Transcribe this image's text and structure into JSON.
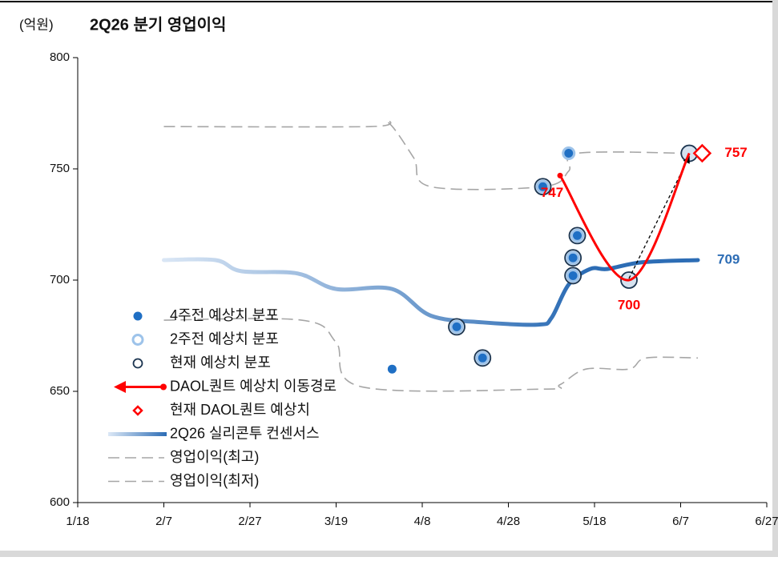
{
  "chart_data": {
    "type": "line",
    "title": "2Q26 분기 영업이익",
    "y_label": "(억원)",
    "xlim": [
      18,
      178
    ],
    "xticks": [
      {
        "value": 18,
        "label": "1/18"
      },
      {
        "value": 38,
        "label": "2/7"
      },
      {
        "value": 58,
        "label": "2/27"
      },
      {
        "value": 78,
        "label": "3/19"
      },
      {
        "value": 98,
        "label": "4/8"
      },
      {
        "value": 118,
        "label": "4/28"
      },
      {
        "value": 138,
        "label": "5/18"
      },
      {
        "value": 158,
        "label": "6/7"
      },
      {
        "value": 178,
        "label": "6/27"
      }
    ],
    "ylim": [
      600,
      800
    ],
    "yticks": [
      600,
      650,
      700,
      750,
      800
    ],
    "series": [
      {
        "name": "2Q26 실리콘투 컨센서스",
        "style": "gradient",
        "color": "#2d6db5",
        "x": [
          38,
          50,
          56,
          69,
          78,
          91,
          100,
          112,
          125,
          128,
          132,
          137,
          141,
          149,
          162
        ],
        "values": [
          709,
          709,
          704,
          703,
          696,
          696,
          684,
          681,
          680,
          683,
          698,
          705,
          705,
          708,
          709
        ],
        "value_label_index": 14
      },
      {
        "name": "영업이익(최고)",
        "style": "dashed",
        "color": "#a6a6a6",
        "x": [
          38,
          86,
          90,
          96,
          100,
          126,
          132,
          134,
          160
        ],
        "values": [
          769,
          769,
          771,
          755,
          742,
          742,
          749,
          757,
          757
        ]
      },
      {
        "name": "영업이익(최저)",
        "style": "dashed",
        "color": "#a6a6a6",
        "x": [
          38,
          70,
          78,
          84,
          126,
          130,
          136,
          146,
          150,
          162
        ],
        "values": [
          682,
          682,
          672,
          652,
          651,
          653,
          660,
          660,
          665,
          665
        ]
      },
      {
        "name": "현재 예상치 분포",
        "style": "ring",
        "color": "#1c3550",
        "x": [
          106,
          112,
          126,
          133,
          133,
          134,
          146,
          160
        ],
        "values": [
          679,
          665,
          742,
          702,
          710,
          720,
          700,
          757
        ]
      },
      {
        "name": "2주전 예상치 분포",
        "style": "lightring",
        "color": "#9dc3ea",
        "x": [
          106,
          112,
          126,
          132,
          133,
          133,
          134
        ],
        "values": [
          679,
          665,
          742,
          757,
          702,
          710,
          720
        ]
      },
      {
        "name": "4주전 예상치 분포",
        "style": "dot",
        "color": "#1f6fc4",
        "x": [
          91,
          106,
          112,
          126,
          132,
          133,
          133,
          134
        ],
        "values": [
          660,
          679,
          665,
          742,
          757,
          702,
          710,
          720
        ]
      },
      {
        "name": "DAOL퀀트 예상치 이동경로",
        "style": "path",
        "color": "#ff0000",
        "x": [
          130,
          146,
          160
        ],
        "values": [
          747,
          700,
          757
        ],
        "value_label_index": [
          0,
          1
        ]
      },
      {
        "name": "현재 DAOL퀀트 예상치",
        "style": "diamond",
        "color": "#ff0000",
        "x": [
          163
        ],
        "values": [
          757
        ],
        "value_label_index": 0
      }
    ],
    "legend_order": [
      5,
      4,
      3,
      6,
      7,
      0,
      1,
      2
    ]
  }
}
